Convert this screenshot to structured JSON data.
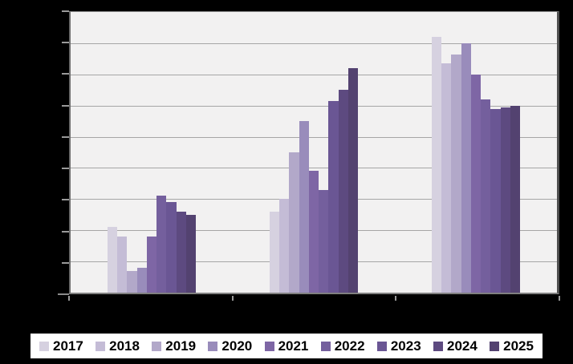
{
  "colors": {
    "page_background": "#000000",
    "plot_background": "#f2f1f1",
    "gridline": "#a6a6a6",
    "axis": "#8a8a8a",
    "legend_background": "#ffffff",
    "legend_border": "#000000",
    "legend_text": "#000000"
  },
  "chart_data": {
    "type": "bar",
    "title": "",
    "xlabel": "",
    "ylabel": "",
    "categories": [
      "",
      "",
      ""
    ],
    "num_groups": 3,
    "ylim": [
      0,
      9
    ],
    "gridline_intervals": 9,
    "grid": "horizontal",
    "axis_tick_labels_visible": false,
    "legend_position": "bottom",
    "series": [
      {
        "name": "2017",
        "color": "#d6d1e0",
        "values": [
          2.1,
          2.6,
          8.2
        ]
      },
      {
        "name": "2018",
        "color": "#c4bcd6",
        "values": [
          1.8,
          3.0,
          7.35
        ]
      },
      {
        "name": "2019",
        "color": "#b2a8c9",
        "values": [
          0.7,
          4.5,
          7.65
        ]
      },
      {
        "name": "2020",
        "color": "#998cbb",
        "values": [
          0.8,
          5.5,
          8.0
        ]
      },
      {
        "name": "2021",
        "color": "#7e66a5",
        "values": [
          1.8,
          3.9,
          7.0
        ]
      },
      {
        "name": "2022",
        "color": "#745f9d",
        "values": [
          3.1,
          3.3,
          6.2
        ]
      },
      {
        "name": "2023",
        "color": "#6a5694",
        "values": [
          2.9,
          6.15,
          5.9
        ]
      },
      {
        "name": "2024",
        "color": "#5d4a80",
        "values": [
          2.6,
          6.5,
          5.95
        ]
      },
      {
        "name": "2025",
        "color": "#534270",
        "values": [
          2.5,
          7.2,
          6.0
        ]
      }
    ]
  }
}
